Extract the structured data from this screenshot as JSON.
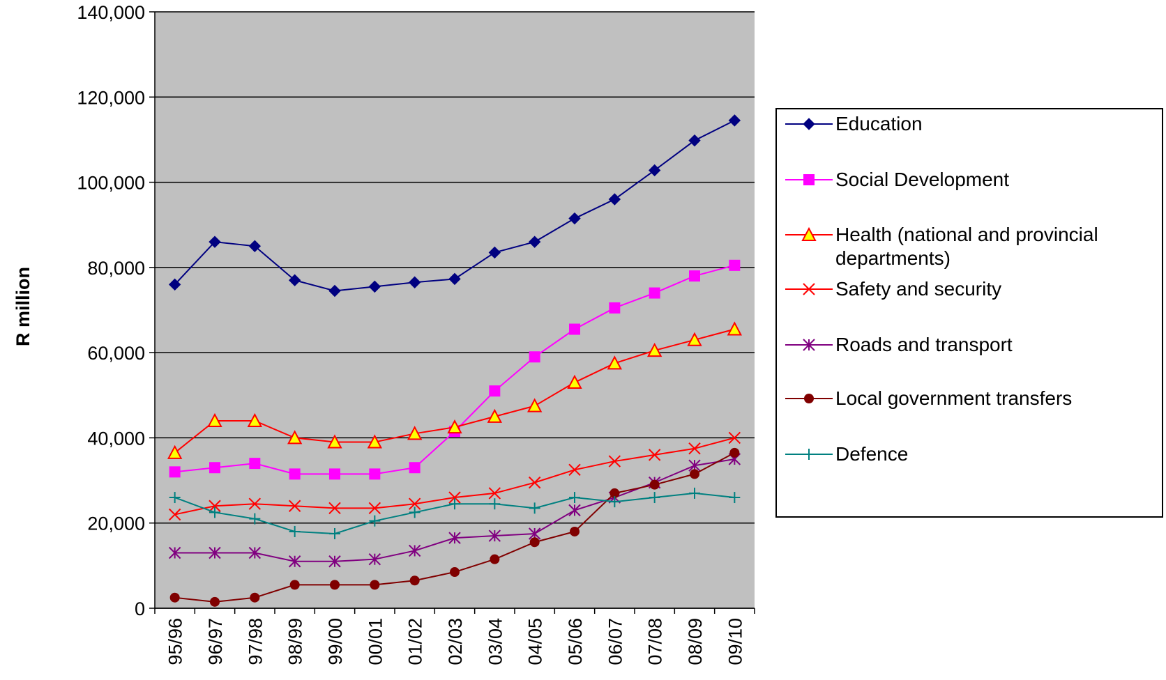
{
  "chart_data": {
    "type": "line",
    "y_label": "R million",
    "categories": [
      "95/96",
      "96/97",
      "97/98",
      "98/99",
      "99/00",
      "00/01",
      "01/02",
      "02/03",
      "03/04",
      "04/05",
      "05/06",
      "06/07",
      "07/08",
      "08/09",
      "09/10"
    ],
    "ylim": [
      0,
      140000
    ],
    "yticks": [
      0,
      {
        "value": 20000,
        "label": "20,000"
      },
      {
        "value": 40000,
        "label": "40,000"
      },
      {
        "value": 60000,
        "label": "60,000"
      },
      {
        "value": 80000,
        "label": "80,000"
      },
      {
        "value": 100000,
        "label": "100,000"
      },
      {
        "value": 120000,
        "label": "120,000"
      },
      {
        "value": 140000,
        "label": "140,000"
      }
    ],
    "grid": true,
    "background": "#c0c0c0",
    "series": [
      {
        "name": "Education",
        "color": "#000080",
        "marker": "diamond",
        "values": [
          76000,
          86000,
          85000,
          77000,
          74500,
          75500,
          76500,
          77300,
          83500,
          86000,
          91500,
          96000,
          102800,
          109800,
          114500
        ]
      },
      {
        "name": "Social Development",
        "color": "#ff00ff",
        "marker": "square",
        "values": [
          32000,
          33000,
          34000,
          31500,
          31500,
          31500,
          33000,
          41500,
          51000,
          59000,
          65500,
          70500,
          74000,
          78000,
          80500
        ]
      },
      {
        "name": "Health (national and provincial departments)",
        "color": "#ff0000",
        "marker": "triangle",
        "values": [
          36500,
          44000,
          44000,
          40000,
          39000,
          39000,
          41000,
          42500,
          45000,
          47500,
          53000,
          57500,
          60500,
          63000,
          65500
        ]
      },
      {
        "name": "Safety and security",
        "color": "#ff0000",
        "marker": "x",
        "values": [
          22000,
          24000,
          24500,
          24000,
          23500,
          23500,
          24500,
          26000,
          27000,
          29500,
          32500,
          34500,
          36000,
          37500,
          40000
        ]
      },
      {
        "name": "Roads and transport",
        "color": "#800080",
        "marker": "asterisk",
        "values": [
          13000,
          13000,
          13000,
          11000,
          11000,
          11500,
          13500,
          16500,
          17000,
          17500,
          23000,
          26000,
          29500,
          33500,
          35000
        ]
      },
      {
        "name": "Local government transfers",
        "color": "#800000",
        "marker": "circle",
        "values": [
          2500,
          1500,
          2500,
          5500,
          5500,
          5500,
          6500,
          8500,
          11500,
          15500,
          18000,
          27000,
          29000,
          31500,
          36500
        ]
      },
      {
        "name": "Defence",
        "color": "#008080",
        "marker": "plus",
        "values": [
          26000,
          22500,
          21000,
          18000,
          17500,
          20500,
          22500,
          24500,
          24500,
          23500,
          26000,
          25000,
          26000,
          27000,
          26000
        ]
      }
    ]
  }
}
